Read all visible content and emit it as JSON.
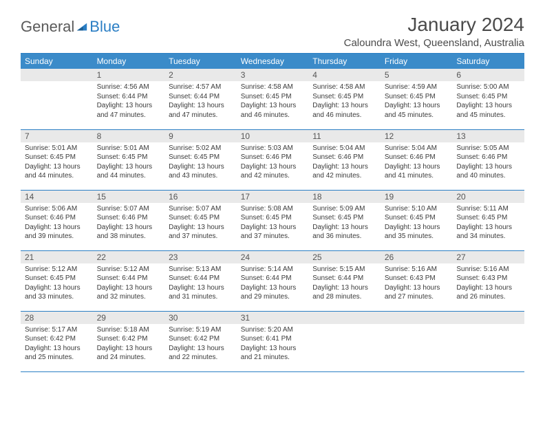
{
  "brand": {
    "part1": "General",
    "part2": "Blue"
  },
  "title": "January 2024",
  "location": "Caloundra West, Queensland, Australia",
  "colors": {
    "header_bg": "#3b8bc9",
    "header_text": "#ffffff",
    "rule": "#2a7ec4",
    "daynum_bg": "#e9e9e9",
    "text": "#3a3a3a",
    "brand_gray": "#5a5a5a",
    "brand_blue": "#2a7ec4",
    "page_bg": "#ffffff"
  },
  "typography": {
    "title_fontsize": 28,
    "location_fontsize": 15,
    "weekday_fontsize": 12,
    "daynum_fontsize": 12,
    "body_fontsize": 10,
    "logo_fontsize": 22
  },
  "weekdays": [
    "Sunday",
    "Monday",
    "Tuesday",
    "Wednesday",
    "Thursday",
    "Friday",
    "Saturday"
  ],
  "weeks": [
    [
      null,
      {
        "n": "1",
        "sr": "Sunrise: 4:56 AM",
        "ss": "Sunset: 6:44 PM",
        "d1": "Daylight: 13 hours",
        "d2": "and 47 minutes."
      },
      {
        "n": "2",
        "sr": "Sunrise: 4:57 AM",
        "ss": "Sunset: 6:44 PM",
        "d1": "Daylight: 13 hours",
        "d2": "and 47 minutes."
      },
      {
        "n": "3",
        "sr": "Sunrise: 4:58 AM",
        "ss": "Sunset: 6:45 PM",
        "d1": "Daylight: 13 hours",
        "d2": "and 46 minutes."
      },
      {
        "n": "4",
        "sr": "Sunrise: 4:58 AM",
        "ss": "Sunset: 6:45 PM",
        "d1": "Daylight: 13 hours",
        "d2": "and 46 minutes."
      },
      {
        "n": "5",
        "sr": "Sunrise: 4:59 AM",
        "ss": "Sunset: 6:45 PM",
        "d1": "Daylight: 13 hours",
        "d2": "and 45 minutes."
      },
      {
        "n": "6",
        "sr": "Sunrise: 5:00 AM",
        "ss": "Sunset: 6:45 PM",
        "d1": "Daylight: 13 hours",
        "d2": "and 45 minutes."
      }
    ],
    [
      {
        "n": "7",
        "sr": "Sunrise: 5:01 AM",
        "ss": "Sunset: 6:45 PM",
        "d1": "Daylight: 13 hours",
        "d2": "and 44 minutes."
      },
      {
        "n": "8",
        "sr": "Sunrise: 5:01 AM",
        "ss": "Sunset: 6:45 PM",
        "d1": "Daylight: 13 hours",
        "d2": "and 44 minutes."
      },
      {
        "n": "9",
        "sr": "Sunrise: 5:02 AM",
        "ss": "Sunset: 6:45 PM",
        "d1": "Daylight: 13 hours",
        "d2": "and 43 minutes."
      },
      {
        "n": "10",
        "sr": "Sunrise: 5:03 AM",
        "ss": "Sunset: 6:46 PM",
        "d1": "Daylight: 13 hours",
        "d2": "and 42 minutes."
      },
      {
        "n": "11",
        "sr": "Sunrise: 5:04 AM",
        "ss": "Sunset: 6:46 PM",
        "d1": "Daylight: 13 hours",
        "d2": "and 42 minutes."
      },
      {
        "n": "12",
        "sr": "Sunrise: 5:04 AM",
        "ss": "Sunset: 6:46 PM",
        "d1": "Daylight: 13 hours",
        "d2": "and 41 minutes."
      },
      {
        "n": "13",
        "sr": "Sunrise: 5:05 AM",
        "ss": "Sunset: 6:46 PM",
        "d1": "Daylight: 13 hours",
        "d2": "and 40 minutes."
      }
    ],
    [
      {
        "n": "14",
        "sr": "Sunrise: 5:06 AM",
        "ss": "Sunset: 6:46 PM",
        "d1": "Daylight: 13 hours",
        "d2": "and 39 minutes."
      },
      {
        "n": "15",
        "sr": "Sunrise: 5:07 AM",
        "ss": "Sunset: 6:46 PM",
        "d1": "Daylight: 13 hours",
        "d2": "and 38 minutes."
      },
      {
        "n": "16",
        "sr": "Sunrise: 5:07 AM",
        "ss": "Sunset: 6:45 PM",
        "d1": "Daylight: 13 hours",
        "d2": "and 37 minutes."
      },
      {
        "n": "17",
        "sr": "Sunrise: 5:08 AM",
        "ss": "Sunset: 6:45 PM",
        "d1": "Daylight: 13 hours",
        "d2": "and 37 minutes."
      },
      {
        "n": "18",
        "sr": "Sunrise: 5:09 AM",
        "ss": "Sunset: 6:45 PM",
        "d1": "Daylight: 13 hours",
        "d2": "and 36 minutes."
      },
      {
        "n": "19",
        "sr": "Sunrise: 5:10 AM",
        "ss": "Sunset: 6:45 PM",
        "d1": "Daylight: 13 hours",
        "d2": "and 35 minutes."
      },
      {
        "n": "20",
        "sr": "Sunrise: 5:11 AM",
        "ss": "Sunset: 6:45 PM",
        "d1": "Daylight: 13 hours",
        "d2": "and 34 minutes."
      }
    ],
    [
      {
        "n": "21",
        "sr": "Sunrise: 5:12 AM",
        "ss": "Sunset: 6:45 PM",
        "d1": "Daylight: 13 hours",
        "d2": "and 33 minutes."
      },
      {
        "n": "22",
        "sr": "Sunrise: 5:12 AM",
        "ss": "Sunset: 6:44 PM",
        "d1": "Daylight: 13 hours",
        "d2": "and 32 minutes."
      },
      {
        "n": "23",
        "sr": "Sunrise: 5:13 AM",
        "ss": "Sunset: 6:44 PM",
        "d1": "Daylight: 13 hours",
        "d2": "and 31 minutes."
      },
      {
        "n": "24",
        "sr": "Sunrise: 5:14 AM",
        "ss": "Sunset: 6:44 PM",
        "d1": "Daylight: 13 hours",
        "d2": "and 29 minutes."
      },
      {
        "n": "25",
        "sr": "Sunrise: 5:15 AM",
        "ss": "Sunset: 6:44 PM",
        "d1": "Daylight: 13 hours",
        "d2": "and 28 minutes."
      },
      {
        "n": "26",
        "sr": "Sunrise: 5:16 AM",
        "ss": "Sunset: 6:43 PM",
        "d1": "Daylight: 13 hours",
        "d2": "and 27 minutes."
      },
      {
        "n": "27",
        "sr": "Sunrise: 5:16 AM",
        "ss": "Sunset: 6:43 PM",
        "d1": "Daylight: 13 hours",
        "d2": "and 26 minutes."
      }
    ],
    [
      {
        "n": "28",
        "sr": "Sunrise: 5:17 AM",
        "ss": "Sunset: 6:42 PM",
        "d1": "Daylight: 13 hours",
        "d2": "and 25 minutes."
      },
      {
        "n": "29",
        "sr": "Sunrise: 5:18 AM",
        "ss": "Sunset: 6:42 PM",
        "d1": "Daylight: 13 hours",
        "d2": "and 24 minutes."
      },
      {
        "n": "30",
        "sr": "Sunrise: 5:19 AM",
        "ss": "Sunset: 6:42 PM",
        "d1": "Daylight: 13 hours",
        "d2": "and 22 minutes."
      },
      {
        "n": "31",
        "sr": "Sunrise: 5:20 AM",
        "ss": "Sunset: 6:41 PM",
        "d1": "Daylight: 13 hours",
        "d2": "and 21 minutes."
      },
      null,
      null,
      null
    ]
  ]
}
